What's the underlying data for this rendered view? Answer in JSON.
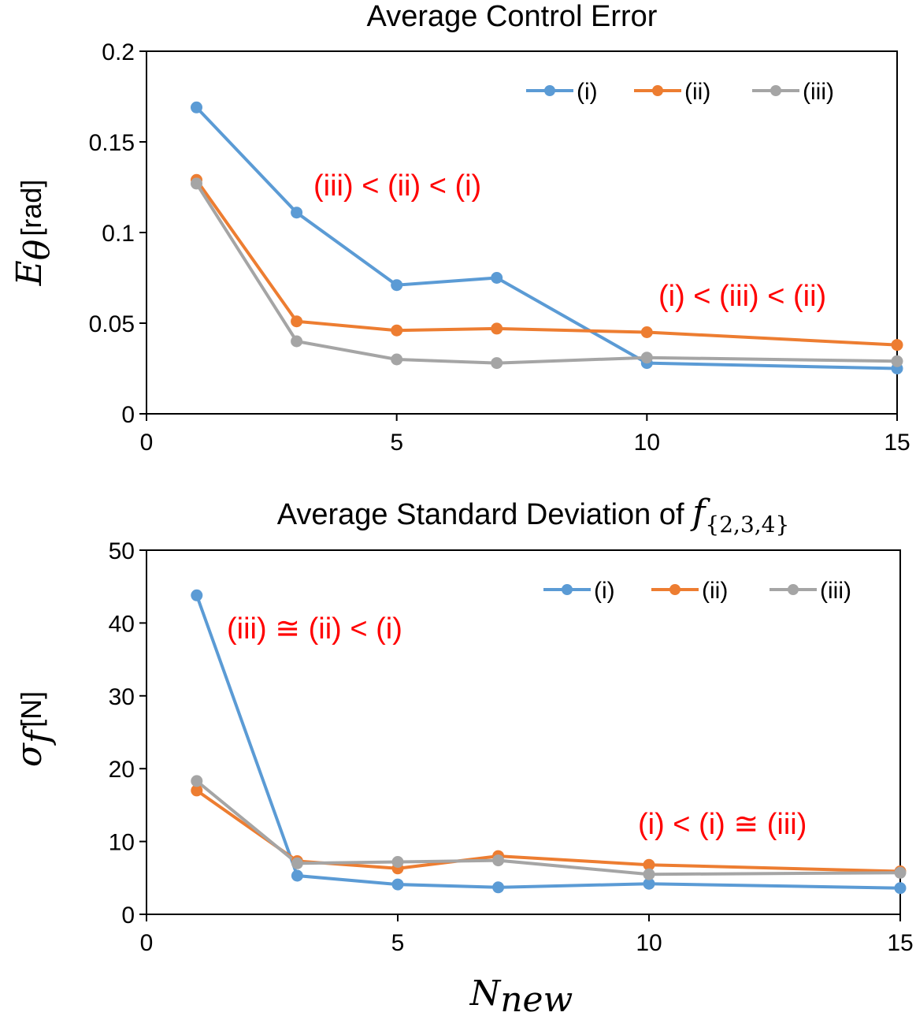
{
  "chart_data": [
    {
      "type": "line",
      "title": "Average Control Error",
      "xlabel": "",
      "ylabel": "Eθ [rad]",
      "ylabel_symbol": "E",
      "ylabel_sub": "θ",
      "ylabel_unit": "[rad]",
      "xlim": [
        0,
        15
      ],
      "ylim": [
        0,
        0.2
      ],
      "xticks": [
        0,
        5,
        10,
        15
      ],
      "yticks": [
        0,
        0.05,
        0.1,
        0.15,
        0.2
      ],
      "ytick_labels": [
        "0",
        "0.05",
        "0.1",
        "0.15",
        "0.2"
      ],
      "grid": false,
      "legend_position": "top-right",
      "x": [
        1,
        3,
        5,
        7,
        10,
        15
      ],
      "series": [
        {
          "name": "(i)",
          "color": "#5B9BD5",
          "values": [
            0.169,
            0.111,
            0.071,
            0.075,
            0.028,
            0.025
          ]
        },
        {
          "name": "(ii)",
          "color": "#ED7D31",
          "values": [
            0.129,
            0.051,
            0.046,
            0.047,
            0.045,
            0.038
          ]
        },
        {
          "name": "(iii)",
          "color": "#A5A5A5",
          "values": [
            0.127,
            0.04,
            0.03,
            0.028,
            0.031,
            0.029
          ]
        }
      ],
      "annotations": [
        "(iii) < (ii) < (i)",
        "(i) < (iii) < (ii)"
      ]
    },
    {
      "type": "line",
      "title": "Average Standard Deviation of f{2,3,4}",
      "title_text": "Average Standard Deviation of ",
      "title_symbol": "f",
      "title_sub": "{2,3,4}",
      "xlabel": "Nnew",
      "xlabel_symbol": "N",
      "xlabel_sub": "new",
      "ylabel": "σf [N]",
      "ylabel_symbol": "σ",
      "ylabel_sub": "f",
      "ylabel_unit": "[N]",
      "xlim": [
        0,
        15
      ],
      "ylim": [
        0,
        50
      ],
      "xticks": [
        0,
        5,
        10,
        15
      ],
      "yticks": [
        0,
        10,
        20,
        30,
        40,
        50
      ],
      "ytick_labels": [
        "0",
        "10",
        "20",
        "30",
        "40",
        "50"
      ],
      "grid": false,
      "legend_position": "top-right",
      "x": [
        1,
        3,
        5,
        7,
        10,
        15
      ],
      "series": [
        {
          "name": "(i)",
          "color": "#5B9BD5",
          "values": [
            43.8,
            5.3,
            4.1,
            3.7,
            4.2,
            3.6
          ]
        },
        {
          "name": "(ii)",
          "color": "#ED7D31",
          "values": [
            17.0,
            7.3,
            6.3,
            8.0,
            6.8,
            5.9
          ]
        },
        {
          "name": "(iii)",
          "color": "#A5A5A5",
          "values": [
            18.3,
            7.0,
            7.2,
            7.4,
            5.5,
            5.7
          ]
        }
      ],
      "annotations": [
        "(iii) ≅ (ii) < (i)",
        "(i) < (i) ≅ (iii)"
      ]
    }
  ]
}
